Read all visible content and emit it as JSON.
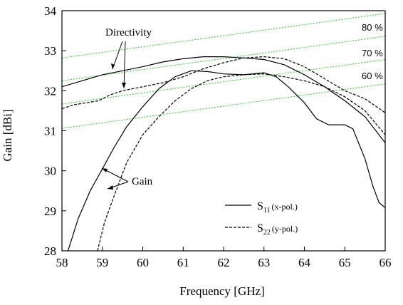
{
  "chart_data": {
    "type": "line",
    "xlabel": "Frequency [GHz]",
    "ylabel": "Gain [dBi]",
    "xlim": [
      58,
      66
    ],
    "ylim": [
      28,
      34
    ],
    "xticks": [
      58,
      59,
      60,
      61,
      62,
      63,
      64,
      65,
      66
    ],
    "yticks": [
      28,
      29,
      30,
      31,
      32,
      33,
      34
    ],
    "grid": false,
    "legend_position": "bottom-right",
    "series": [
      {
        "key": "directivity_s11",
        "style": "solid",
        "values": [
          [
            58.0,
            32.1
          ],
          [
            58.5,
            32.25
          ],
          [
            59.0,
            32.4
          ],
          [
            59.5,
            32.5
          ],
          [
            60.0,
            32.6
          ],
          [
            60.5,
            32.72
          ],
          [
            61.0,
            32.8
          ],
          [
            61.5,
            32.85
          ],
          [
            62.0,
            32.85
          ],
          [
            62.5,
            32.82
          ],
          [
            63.0,
            32.78
          ],
          [
            63.5,
            32.65
          ],
          [
            64.0,
            32.4
          ],
          [
            64.5,
            32.1
          ],
          [
            65.0,
            31.75
          ],
          [
            65.5,
            31.35
          ],
          [
            66.0,
            30.7
          ]
        ]
      },
      {
        "key": "directivity_s22",
        "style": "dashed",
        "values": [
          [
            58.0,
            31.55
          ],
          [
            58.3,
            31.65
          ],
          [
            58.6,
            31.7
          ],
          [
            58.9,
            31.75
          ],
          [
            59.2,
            31.9
          ],
          [
            59.5,
            32.0
          ],
          [
            60.0,
            32.1
          ],
          [
            60.5,
            32.2
          ],
          [
            61.0,
            32.35
          ],
          [
            61.5,
            32.55
          ],
          [
            62.0,
            32.7
          ],
          [
            62.5,
            32.82
          ],
          [
            63.0,
            32.85
          ],
          [
            63.5,
            32.8
          ],
          [
            64.0,
            32.6
          ],
          [
            64.5,
            32.3
          ],
          [
            65.0,
            32.0
          ],
          [
            65.5,
            31.8
          ],
          [
            66.0,
            31.45
          ]
        ]
      },
      {
        "key": "gain_s11",
        "style": "solid",
        "values": [
          [
            58.15,
            28.0
          ],
          [
            58.4,
            28.8
          ],
          [
            58.7,
            29.5
          ],
          [
            59.0,
            30.05
          ],
          [
            59.3,
            30.6
          ],
          [
            59.6,
            31.1
          ],
          [
            60.0,
            31.6
          ],
          [
            60.4,
            32.05
          ],
          [
            60.8,
            32.35
          ],
          [
            61.2,
            32.5
          ],
          [
            61.6,
            32.48
          ],
          [
            62.0,
            32.42
          ],
          [
            62.5,
            32.4
          ],
          [
            63.0,
            32.45
          ],
          [
            63.3,
            32.35
          ],
          [
            63.6,
            32.1
          ],
          [
            64.0,
            31.7
          ],
          [
            64.3,
            31.3
          ],
          [
            64.6,
            31.15
          ],
          [
            65.0,
            31.15
          ],
          [
            65.2,
            31.05
          ],
          [
            65.5,
            30.3
          ],
          [
            65.7,
            29.6
          ],
          [
            65.85,
            29.2
          ],
          [
            66.0,
            29.08
          ]
        ]
      },
      {
        "key": "gain_s22",
        "style": "dashed",
        "values": [
          [
            58.88,
            28.0
          ],
          [
            59.05,
            28.7
          ],
          [
            59.3,
            29.4
          ],
          [
            59.6,
            30.2
          ],
          [
            60.0,
            30.9
          ],
          [
            60.4,
            31.35
          ],
          [
            60.8,
            31.75
          ],
          [
            61.2,
            32.05
          ],
          [
            61.6,
            32.25
          ],
          [
            62.0,
            32.35
          ],
          [
            62.5,
            32.4
          ],
          [
            63.0,
            32.42
          ],
          [
            63.5,
            32.35
          ],
          [
            64.0,
            32.25
          ],
          [
            64.5,
            32.1
          ],
          [
            65.0,
            31.85
          ],
          [
            65.5,
            31.5
          ],
          [
            66.0,
            30.9
          ]
        ]
      },
      {
        "key": "eff_80",
        "style": "green-dotted",
        "values": [
          [
            58.0,
            32.82
          ],
          [
            66.0,
            33.93
          ]
        ]
      },
      {
        "key": "eff_70",
        "style": "green-dotted",
        "values": [
          [
            58.0,
            32.25
          ],
          [
            66.0,
            33.36
          ]
        ]
      },
      {
        "key": "eff_60",
        "style": "green-dotted",
        "values": [
          [
            58.0,
            31.67
          ],
          [
            66.0,
            32.78
          ]
        ]
      },
      {
        "key": "eff_50",
        "style": "green-dotted",
        "values": [
          [
            58.0,
            31.06
          ],
          [
            66.0,
            32.17
          ]
        ]
      }
    ],
    "annotations": {
      "directivity": "Directivity",
      "gain": "Gain",
      "pct_80": "80 %",
      "pct_70": "70 %",
      "pct_60": "60 %"
    },
    "legend": [
      {
        "main": "S",
        "sub": "11",
        "pol": "(x-pol.)",
        "style": "solid"
      },
      {
        "main": "S",
        "sub": "22",
        "pol": "(y-pol.)",
        "style": "dashed"
      }
    ],
    "colors": {
      "axis": "#000000",
      "curve": "#000000",
      "efficiency_lines": "#22cc22"
    }
  }
}
